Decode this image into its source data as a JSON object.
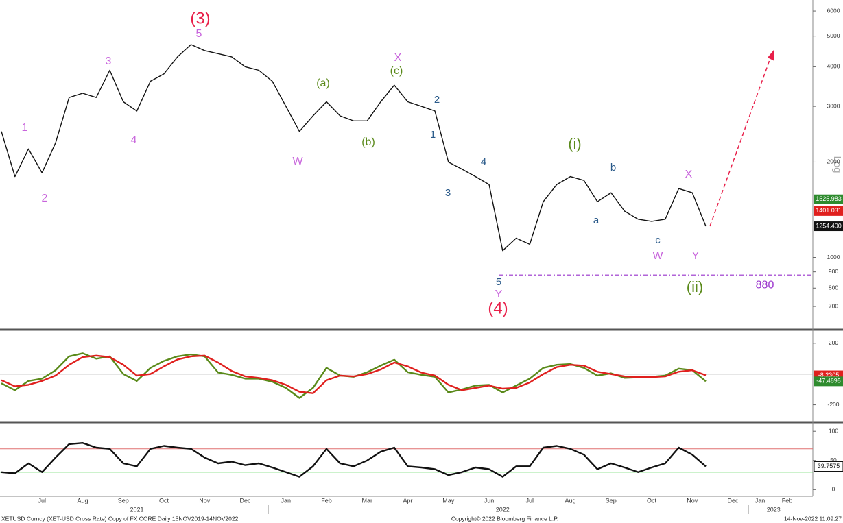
{
  "footer": {
    "left": "XETUSD Curncy (XET-USD Cross Rate) Copy of FX CORE  Daily 15NOV2019-14NOV2022",
    "center": "Copyright© 2022 Bloomberg Finance L.P.",
    "right": "14-Nov-2022 11:09:27"
  },
  "chart_data": [
    {
      "type": "line",
      "log_scale": true,
      "axis_label": "Log",
      "ylim": [
        600,
        6500
      ],
      "yticks": [
        700,
        800,
        900,
        1000,
        2000,
        3000,
        4000,
        5000,
        6000
      ],
      "series": [
        {
          "color": "#111111",
          "values": [
            2500,
            1800,
            2200,
            1850,
            2300,
            3200,
            3300,
            3200,
            3900,
            3100,
            2900,
            3600,
            3800,
            4300,
            4700,
            4500,
            4400,
            4300,
            4000,
            3900,
            3600,
            3000,
            2500,
            2800,
            3100,
            2800,
            2700,
            2700,
            3100,
            3500,
            3100,
            3000,
            2900,
            2000,
            1900,
            1800,
            1700,
            1050,
            1150,
            1100,
            1500,
            1700,
            1800,
            1750,
            1500,
            1600,
            1400,
            1320,
            1300,
            1320,
            1650,
            1600,
            1254.4,
            null,
            null,
            null,
            null,
            null,
            null,
            null
          ]
        }
      ],
      "tags": [
        {
          "value": 1525.983,
          "color": "#2e8b2e"
        },
        {
          "value": 1401.031,
          "color": "#e0201e"
        },
        {
          "value": 1254.4,
          "label": "1254.400",
          "color": "#111111"
        }
      ],
      "support": 880,
      "support_color": "#9932cc",
      "annotations": [
        {
          "text": "(3)",
          "color": "#e8204a"
        },
        {
          "text": "5",
          "color": "#c864dc"
        },
        {
          "text": "3",
          "color": "#c864dc"
        },
        {
          "text": "1",
          "color": "#c864dc"
        },
        {
          "text": "2",
          "color": "#c864dc"
        },
        {
          "text": "4",
          "color": "#c864dc"
        },
        {
          "text": "(a)",
          "color": "#5a8a1a"
        },
        {
          "text": "(b)",
          "color": "#5a8a1a"
        },
        {
          "text": "X",
          "color": "#c864dc"
        },
        {
          "text": "(c)",
          "color": "#5a8a1a"
        },
        {
          "text": "W",
          "color": "#c864dc"
        },
        {
          "text": "2",
          "color": "#2a5a8a"
        },
        {
          "text": "1",
          "color": "#2a5a8a"
        },
        {
          "text": "3",
          "color": "#2a5a8a"
        },
        {
          "text": "4",
          "color": "#2a5a8a"
        },
        {
          "text": "5",
          "color": "#2a5a8a"
        },
        {
          "text": "Y",
          "color": "#c864dc"
        },
        {
          "text": "(4)",
          "color": "#e8204a"
        },
        {
          "text": "(i)",
          "color": "#5a8a1a"
        },
        {
          "text": "b",
          "color": "#2a5a8a"
        },
        {
          "text": "a",
          "color": "#2a5a8a"
        },
        {
          "text": "X",
          "color": "#c864dc"
        },
        {
          "text": "c",
          "color": "#2a5a8a"
        },
        {
          "text": "W",
          "color": "#c864dc"
        },
        {
          "text": "Y",
          "color": "#c864dc"
        },
        {
          "text": "(ii)",
          "color": "#5a8a1a"
        }
      ]
    },
    {
      "type": "line",
      "ylim": [
        -300,
        275
      ],
      "yticks": [
        -200,
        200
      ],
      "reference_lines": [
        {
          "value": 0,
          "color": "#999999"
        }
      ],
      "series": [
        {
          "color": "#5a8a1a",
          "values": [
            -60,
            -105,
            -45,
            -30,
            25,
            115,
            135,
            100,
            115,
            0,
            -45,
            40,
            85,
            115,
            128,
            115,
            10,
            -5,
            -30,
            -30,
            -50,
            -90,
            -155,
            -90,
            40,
            -10,
            -18,
            12,
            55,
            93,
            12,
            -5,
            -18,
            -120,
            -100,
            -75,
            -70,
            -120,
            -75,
            -30,
            40,
            60,
            65,
            40,
            -10,
            5,
            -25,
            -22,
            -18,
            -10,
            35,
            25,
            -47.4695,
            null,
            null,
            null,
            null,
            null,
            null,
            null
          ]
        },
        {
          "color": "#e0201e",
          "values": [
            -40,
            -80,
            -70,
            -45,
            -10,
            60,
            110,
            120,
            110,
            60,
            -10,
            0,
            50,
            95,
            115,
            120,
            75,
            20,
            -15,
            -25,
            -40,
            -70,
            -115,
            -125,
            -40,
            -10,
            -15,
            0,
            30,
            75,
            50,
            10,
            -10,
            -70,
            -105,
            -90,
            -75,
            -95,
            -90,
            -55,
            0,
            45,
            60,
            55,
            15,
            0,
            -15,
            -20,
            -20,
            -15,
            15,
            25,
            -8.2305,
            null,
            null,
            null,
            null,
            null,
            null,
            null
          ]
        }
      ],
      "tags": [
        {
          "value": -8.2305,
          "color": "#e0201e"
        },
        {
          "value": -47.4695,
          "color": "#2e8b2e"
        }
      ]
    },
    {
      "type": "line",
      "ylim": [
        -9,
        112
      ],
      "yticks": [
        0,
        50,
        100
      ],
      "reference_lines": [
        {
          "value": 70,
          "color": "#e07070"
        },
        {
          "value": 30,
          "color": "#33cc33"
        }
      ],
      "series": [
        {
          "color": "#111111",
          "values": [
            30,
            28,
            45,
            30,
            55,
            78,
            80,
            72,
            70,
            45,
            40,
            70,
            75,
            72,
            70,
            55,
            45,
            48,
            42,
            45,
            38,
            30,
            22,
            40,
            70,
            45,
            40,
            50,
            65,
            72,
            40,
            38,
            35,
            25,
            30,
            38,
            35,
            22,
            40,
            40,
            72,
            75,
            70,
            60,
            35,
            45,
            38,
            30,
            38,
            45,
            72,
            60,
            39.7575,
            null,
            null,
            null,
            null,
            null,
            null,
            null
          ]
        }
      ],
      "tags": [
        {
          "value": 39.7575,
          "color": "#ffffff"
        }
      ],
      "categories": [
        null,
        null,
        null,
        "Jul",
        null,
        null,
        "Aug",
        null,
        null,
        "Sep",
        null,
        null,
        "Oct",
        null,
        null,
        "Nov",
        null,
        null,
        "Dec",
        null,
        null,
        "Jan",
        null,
        null,
        "Feb",
        null,
        null,
        "Mar",
        null,
        null,
        "Apr",
        null,
        null,
        "May",
        null,
        null,
        "Jun",
        null,
        null,
        "Jul",
        null,
        null,
        "Aug",
        null,
        null,
        "Sep",
        null,
        null,
        "Oct",
        null,
        null,
        "Nov",
        null,
        null,
        "Dec",
        null,
        "Jan",
        null,
        "Feb",
        null
      ],
      "year_labels": [
        null,
        null,
        null,
        null,
        null,
        null,
        null,
        null,
        null,
        null,
        "2021",
        null,
        null,
        null,
        null,
        null,
        null,
        null,
        null,
        null,
        null,
        null,
        null,
        null,
        null,
        null,
        null,
        null,
        null,
        null,
        null,
        null,
        null,
        null,
        null,
        null,
        null,
        "2022",
        null,
        null,
        null,
        null,
        null,
        null,
        null,
        null,
        null,
        null,
        null,
        null,
        null,
        null,
        null,
        null,
        null,
        null,
        null,
        "2023",
        null,
        null
      ]
    }
  ]
}
